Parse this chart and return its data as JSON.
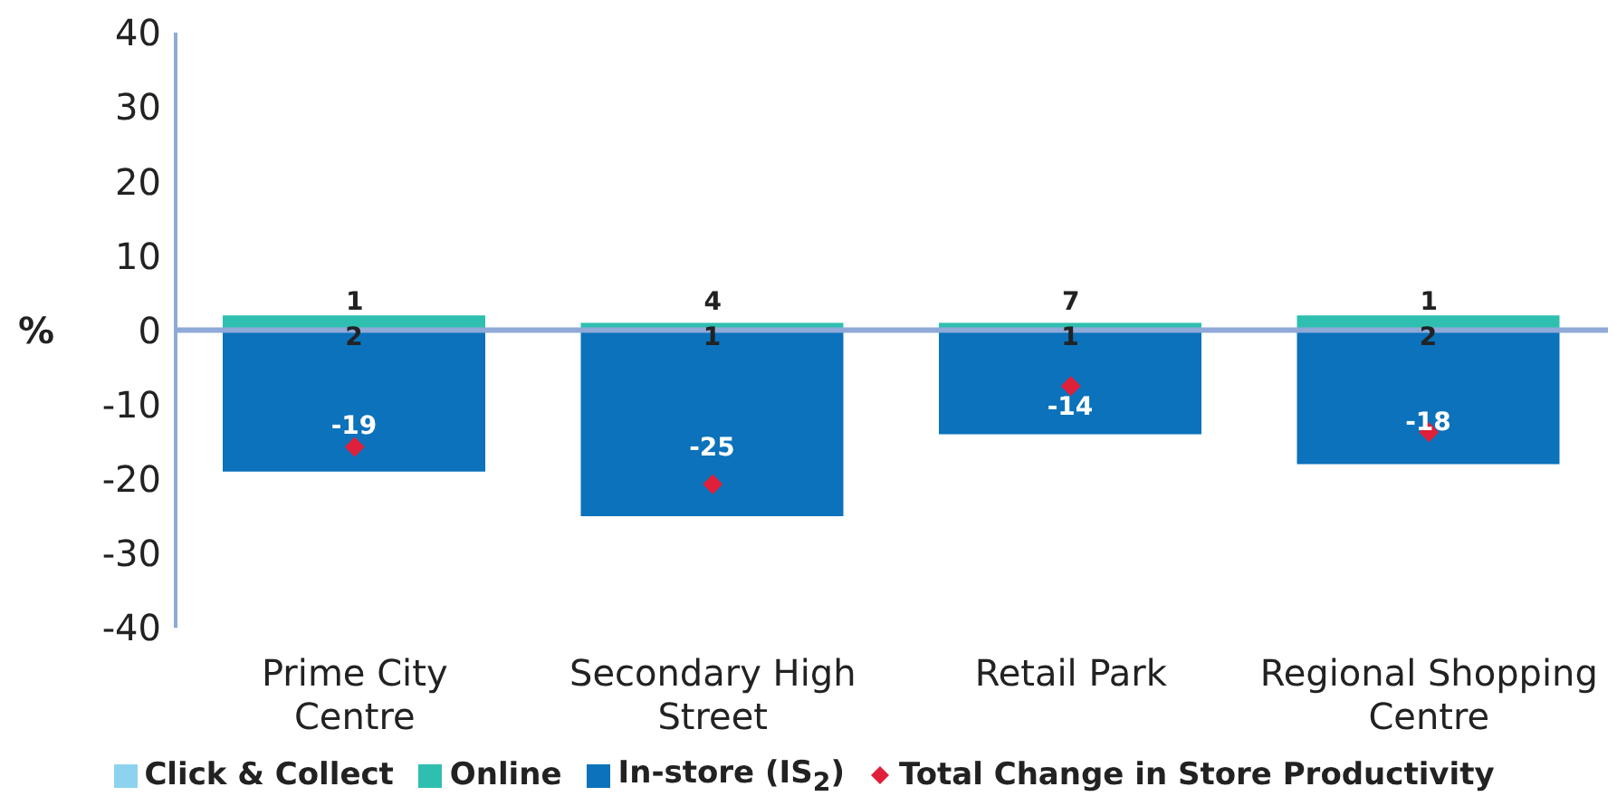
{
  "chart_data": {
    "type": "bar",
    "stacked": true,
    "ylabel": "%",
    "categories": [
      "Prime City Centre",
      "Secondary High Street",
      "Retail Park",
      "Regional Shopping Centre"
    ],
    "series": [
      {
        "name": "Click & Collect",
        "color": "#8dd3f0",
        "values": [
          null,
          null,
          null,
          null
        ]
      },
      {
        "name": "Online",
        "color": "#2ebfb0",
        "values": [
          2,
          1,
          1,
          2
        ],
        "value_labels": [
          "2",
          "1",
          "1",
          "2"
        ]
      },
      {
        "name": "In-store (IS$_{2}$)",
        "color": "#0b72bb",
        "values": [
          -19,
          -25,
          -14,
          -18
        ],
        "value_labels": [
          "-19",
          "-25",
          "-14",
          "-18"
        ]
      },
      {
        "name": "Total Change in Store Productivity",
        "type": "scatter",
        "marker": "diamond",
        "color": "#e0203a",
        "values": [
          -15.7,
          -20.7,
          -7.5,
          -13.7
        ]
      }
    ],
    "annotations": [
      "1",
      "4",
      "7",
      "1"
    ],
    "ref_lines": [
      {
        "axis": "y",
        "value": 0,
        "color": "#8fa9d8"
      }
    ],
    "ylim": [
      -40,
      40
    ],
    "yticks": [
      -40,
      -30,
      -20,
      -10,
      0,
      10,
      20,
      30,
      40
    ],
    "legend": "bottom"
  }
}
